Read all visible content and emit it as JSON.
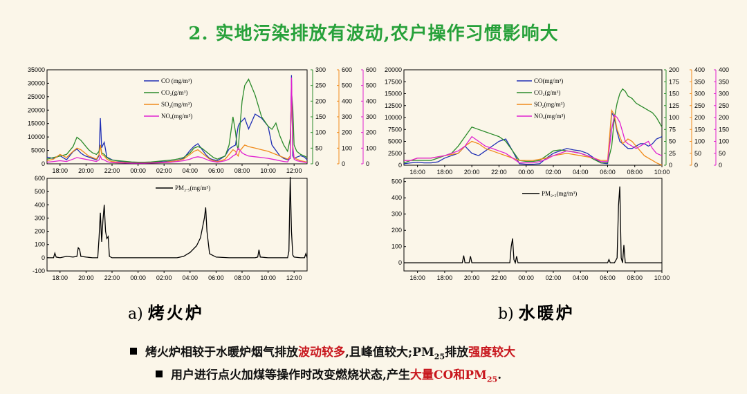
{
  "slide": {
    "title": "2. 实地污染排放有波动,农户操作习惯影响大",
    "caption_a_letter": "a)",
    "caption_a_name": "烤火炉",
    "caption_b_letter": "b)",
    "caption_b_name": "水暖炉",
    "bullet1_a": "烤火炉相较于水暖炉烟气排放",
    "bullet1_b": "波动较多",
    "bullet1_c": ",且峰值较大;PM",
    "bullet1_sub": "25",
    "bullet1_d": "排放",
    "bullet1_e": "强度较大",
    "bullet2_a": "用户进行点火加煤等操作时改变燃烧状态,产生",
    "bullet2_b": "大量CO和PM",
    "bullet2_sub": "25",
    "bullet2_c": "."
  },
  "colors": {
    "co": "#1f2fb4",
    "co2": "#2a8a2a",
    "so2": "#f08a1a",
    "nox": "#e020d0",
    "pm": "#000000",
    "title": "#27a13a",
    "highlight": "#c8161d"
  },
  "chart_data": [
    {
      "type": "line",
      "name": "a-gas",
      "x_ticks": [
        "18:00",
        "20:00",
        "22:00",
        "00:00",
        "02:00",
        "04:00",
        "06:00",
        "08:00",
        "10:00",
        "12:00"
      ],
      "x": [
        17.0,
        17.5,
        18.0,
        18.5,
        19.0,
        19.3,
        19.6,
        19.9,
        20.2,
        20.5,
        20.8,
        21.0,
        21.1,
        21.2,
        21.4,
        21.6,
        21.8,
        22.0,
        22.5,
        23.0,
        23.5,
        24.0,
        24.5,
        25.0,
        25.5,
        26.0,
        26.5,
        27.0,
        27.5,
        28.0,
        28.3,
        28.6,
        28.9,
        29.2,
        29.5,
        29.8,
        30.1,
        30.4,
        30.7,
        31.0,
        31.3,
        31.5,
        31.6,
        31.7,
        31.8,
        32.0,
        32.2,
        32.5,
        33.0,
        33.5,
        34.0,
        34.3,
        34.6,
        34.9,
        35.2,
        35.5,
        35.7,
        35.8,
        35.9,
        36.0,
        36.2,
        36.5,
        36.8,
        37.0
      ],
      "axes": [
        {
          "side": "left",
          "ylim": [
            0,
            35000
          ],
          "ticks": [
            0,
            5000,
            10000,
            15000,
            20000,
            25000,
            30000,
            35000
          ]
        },
        {
          "side": "right",
          "ylim": [
            0,
            300
          ],
          "ticks": [
            0,
            50,
            100,
            150,
            200,
            250,
            300
          ],
          "color": "#2a8a2a"
        },
        {
          "side": "right",
          "ylim": [
            0,
            600
          ],
          "ticks": [
            0,
            100,
            200,
            300,
            400,
            500,
            600
          ],
          "color": "#f08a1a"
        },
        {
          "side": "right",
          "ylim": [
            0,
            600
          ],
          "ticks": [
            0,
            100,
            200,
            300,
            400,
            500,
            600
          ],
          "color": "#e020d0"
        }
      ],
      "series": [
        {
          "name": "CO (mg/m³)",
          "axis": 0,
          "key": "co",
          "values": [
            2500,
            2000,
            3000,
            1500,
            4500,
            5500,
            4000,
            3000,
            2500,
            2000,
            1500,
            3000,
            17000,
            6000,
            8000,
            2500,
            2000,
            1500,
            1000,
            800,
            600,
            500,
            500,
            600,
            700,
            800,
            1000,
            1200,
            2000,
            5000,
            6500,
            7500,
            5500,
            3500,
            2000,
            1500,
            1200,
            2000,
            3000,
            5500,
            6500,
            7000,
            11000,
            14000,
            15000,
            16000,
            17000,
            13000,
            18500,
            17000,
            14000,
            7000,
            5000,
            3000,
            2000,
            1500,
            2000,
            33000,
            3000,
            2000,
            2500,
            3000,
            2500,
            1500
          ]
        },
        {
          "name": "CO₂(g/m³)",
          "axis": 1,
          "key": "co2",
          "values": [
            15,
            20,
            25,
            30,
            55,
            85,
            75,
            60,
            45,
            35,
            30,
            40,
            60,
            35,
            30,
            20,
            15,
            12,
            10,
            8,
            6,
            5,
            5,
            6,
            8,
            10,
            12,
            15,
            20,
            35,
            50,
            55,
            50,
            40,
            30,
            20,
            15,
            20,
            25,
            60,
            150,
            100,
            60,
            45,
            100,
            200,
            250,
            270,
            220,
            150,
            120,
            110,
            130,
            90,
            60,
            40,
            80,
            230,
            180,
            60,
            40,
            30,
            25,
            20
          ]
        },
        {
          "name": "SO₂(mg/m³)",
          "axis": 2,
          "key": "so2",
          "values": [
            20,
            30,
            60,
            40,
            80,
            100,
            90,
            70,
            50,
            40,
            30,
            60,
            120,
            60,
            50,
            30,
            20,
            15,
            10,
            8,
            5,
            5,
            5,
            6,
            8,
            10,
            15,
            20,
            30,
            60,
            80,
            90,
            70,
            50,
            30,
            20,
            15,
            20,
            30,
            60,
            90,
            80,
            60,
            50,
            80,
            100,
            120,
            110,
            100,
            90,
            80,
            70,
            60,
            50,
            40,
            30,
            50,
            500,
            100,
            40,
            30,
            20,
            15,
            10
          ]
        },
        {
          "name": "NOₓ(mg/m³)",
          "axis": 3,
          "key": "nox",
          "values": [
            10,
            15,
            20,
            15,
            30,
            40,
            35,
            30,
            25,
            20,
            15,
            25,
            50,
            30,
            25,
            15,
            10,
            8,
            6,
            5,
            4,
            4,
            4,
            5,
            6,
            8,
            10,
            15,
            20,
            30,
            40,
            45,
            40,
            30,
            20,
            15,
            10,
            15,
            20,
            30,
            50,
            60,
            80,
            100,
            90,
            70,
            60,
            50,
            45,
            40,
            35,
            30,
            25,
            20,
            15,
            12,
            40,
            550,
            120,
            30,
            20,
            15,
            10,
            8
          ]
        }
      ]
    },
    {
      "type": "line",
      "name": "a-pm",
      "x_ticks": [
        "18:00",
        "20:00",
        "22:00",
        "00:00",
        "02:00",
        "04:00",
        "06:00",
        "08:00",
        "10:00",
        "12:00"
      ],
      "ylim": [
        -100,
        600
      ],
      "y_ticks": [
        -100,
        0,
        100,
        200,
        300,
        400,
        500,
        600
      ],
      "series": [
        {
          "name": "PM₂.₅(mg/m³)",
          "key": "pm",
          "x": [
            17.0,
            17.5,
            17.6,
            17.7,
            18.0,
            18.5,
            19.0,
            19.3,
            19.4,
            19.5,
            19.6,
            20.0,
            20.5,
            20.9,
            21.0,
            21.1,
            21.2,
            21.3,
            21.4,
            21.5,
            21.6,
            21.7,
            21.8,
            22.0,
            23.0,
            24.0,
            25.0,
            26.0,
            27.0,
            27.5,
            28.0,
            28.5,
            28.8,
            29.0,
            29.1,
            29.2,
            29.3,
            29.5,
            30.0,
            31.0,
            32.0,
            33.0,
            33.2,
            33.3,
            33.4,
            34.0,
            34.5,
            35.0,
            35.5,
            35.6,
            35.7,
            35.8,
            35.9,
            36.0,
            36.5,
            36.8,
            36.9,
            37.0
          ],
          "values": [
            0,
            0,
            35,
            5,
            0,
            10,
            5,
            10,
            75,
            65,
            10,
            5,
            0,
            0,
            150,
            340,
            120,
            280,
            400,
            200,
            145,
            160,
            10,
            0,
            0,
            0,
            0,
            0,
            0,
            10,
            40,
            90,
            150,
            250,
            300,
            380,
            200,
            30,
            5,
            0,
            0,
            0,
            5,
            60,
            5,
            0,
            0,
            0,
            0,
            50,
            610,
            200,
            20,
            5,
            0,
            0,
            30,
            0
          ]
        }
      ]
    },
    {
      "type": "line",
      "name": "b-gas",
      "x_ticks": [
        "16:00",
        "18:00",
        "20:00",
        "22:00",
        "00:00",
        "02:00",
        "04:00",
        "06:00",
        "08:00",
        "10:00"
      ],
      "x": [
        16.0,
        16.5,
        17.0,
        17.5,
        18.0,
        18.5,
        19.0,
        19.5,
        20.0,
        20.5,
        21.0,
        21.5,
        22.0,
        22.5,
        23.0,
        23.5,
        24.0,
        24.5,
        25.0,
        25.5,
        26.0,
        26.5,
        27.0,
        27.5,
        28.0,
        28.5,
        29.0,
        29.5,
        30.0,
        30.5,
        31.0,
        31.3,
        31.5,
        31.7,
        31.9,
        32.1,
        32.3,
        32.5,
        32.8,
        33.1,
        33.4,
        33.7,
        34.0,
        34.3,
        34.6,
        35.0
      ],
      "axes": [
        {
          "side": "left",
          "ylim": [
            0,
            20000
          ],
          "ticks": [
            0,
            2500,
            5000,
            7500,
            10000,
            12500,
            15000,
            17500,
            20000
          ]
        },
        {
          "side": "right",
          "ylim": [
            0,
            200
          ],
          "ticks": [
            0,
            25,
            50,
            75,
            100,
            125,
            150,
            175,
            200
          ],
          "color": "#2a8a2a"
        },
        {
          "side": "right",
          "ylim": [
            0,
            400
          ],
          "ticks": [
            0,
            50,
            100,
            150,
            200,
            250,
            300,
            350,
            400
          ],
          "color": "#f08a1a"
        },
        {
          "side": "right",
          "ylim": [
            0,
            400
          ],
          "ticks": [
            0,
            50,
            100,
            150,
            200,
            250,
            300,
            350,
            400
          ],
          "color": "#e020d0"
        }
      ],
      "series": [
        {
          "name": "CO(mg/m³)",
          "axis": 0,
          "key": "co",
          "values": [
            300,
            500,
            600,
            500,
            500,
            700,
            1500,
            2000,
            2500,
            4000,
            2500,
            2000,
            3000,
            4000,
            5000,
            5500,
            3000,
            300,
            200,
            200,
            300,
            1500,
            2500,
            3000,
            3500,
            3200,
            3000,
            2500,
            1500,
            500,
            300,
            11000,
            10000,
            7000,
            5000,
            4500,
            4000,
            3500,
            3500,
            4000,
            4500,
            4500,
            4000,
            4500,
            5500,
            6000
          ]
        },
        {
          "name": "CO₂(g/m³)",
          "axis": 1,
          "key": "co2",
          "values": [
            5,
            10,
            10,
            10,
            10,
            15,
            20,
            25,
            40,
            60,
            80,
            75,
            70,
            65,
            60,
            50,
            30,
            10,
            8,
            8,
            10,
            20,
            30,
            32,
            30,
            28,
            25,
            20,
            12,
            5,
            5,
            40,
            100,
            130,
            150,
            160,
            155,
            145,
            140,
            130,
            125,
            120,
            115,
            110,
            100,
            80
          ]
        },
        {
          "name": "SO₂(mg/m³)",
          "axis": 2,
          "key": "so2",
          "values": [
            20,
            20,
            30,
            30,
            30,
            35,
            40,
            45,
            50,
            80,
            100,
            90,
            70,
            60,
            50,
            40,
            30,
            20,
            20,
            20,
            25,
            30,
            40,
            45,
            50,
            45,
            40,
            35,
            30,
            20,
            20,
            230,
            210,
            150,
            120,
            90,
            100,
            110,
            100,
            80,
            60,
            40,
            30,
            20,
            10,
            0
          ]
        },
        {
          "name": "NOₓ(mg/m³)",
          "axis": 3,
          "key": "nox",
          "values": [
            20,
            20,
            30,
            30,
            30,
            35,
            40,
            50,
            60,
            80,
            120,
            100,
            80,
            70,
            60,
            50,
            30,
            10,
            10,
            10,
            15,
            25,
            40,
            50,
            60,
            55,
            50,
            40,
            30,
            15,
            15,
            150,
            210,
            200,
            180,
            140,
            100,
            90,
            80,
            70,
            80,
            90,
            100,
            70,
            50,
            40
          ]
        }
      ]
    },
    {
      "type": "line",
      "name": "b-pm",
      "x_ticks": [
        "16:00",
        "18:00",
        "20:00",
        "22:00",
        "00:00",
        "02:00",
        "04:00",
        "06:00",
        "08:00",
        "10:00"
      ],
      "ylim": [
        -50,
        520
      ],
      "y_ticks": [
        0,
        100,
        200,
        300,
        400,
        500
      ],
      "series": [
        {
          "name": "PM₂.₅(mg/m³)",
          "key": "pm",
          "x": [
            16.0,
            18.0,
            20.0,
            20.3,
            20.4,
            20.5,
            20.8,
            20.9,
            21.0,
            21.5,
            23.0,
            23.8,
            23.9,
            24.0,
            24.1,
            24.2,
            24.3,
            24.4,
            26.0,
            28.0,
            30.0,
            31.0,
            31.1,
            31.2,
            31.5,
            31.7,
            31.8,
            31.9,
            32.0,
            32.1,
            32.2,
            32.3,
            33.0,
            34.0,
            35.0
          ],
          "values": [
            0,
            0,
            0,
            0,
            45,
            0,
            0,
            40,
            0,
            0,
            0,
            0,
            100,
            150,
            20,
            0,
            40,
            0,
            0,
            0,
            0,
            0,
            20,
            0,
            0,
            30,
            350,
            470,
            30,
            0,
            110,
            0,
            0,
            0,
            0
          ]
        }
      ]
    }
  ]
}
